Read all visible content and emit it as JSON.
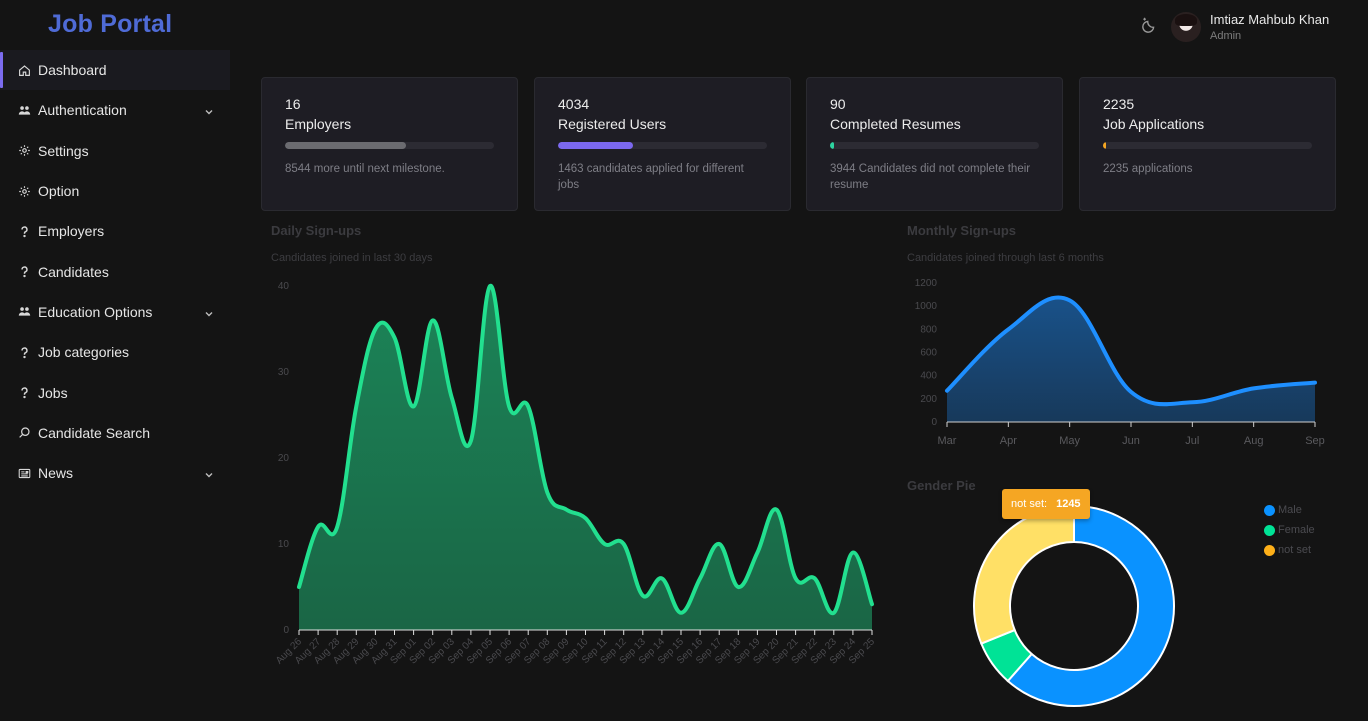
{
  "brand": "Job Portal",
  "header": {
    "user_name": "Imtiaz Mahbub Khan",
    "user_role": "Admin"
  },
  "sidebar": {
    "items": [
      {
        "label": "Dashboard",
        "icon": "home-icon",
        "active": true,
        "expandable": false
      },
      {
        "label": "Authentication",
        "icon": "users-icon",
        "active": false,
        "expandable": true
      },
      {
        "label": "Settings",
        "icon": "gear-icon",
        "active": false,
        "expandable": false
      },
      {
        "label": "Option",
        "icon": "gear-icon",
        "active": false,
        "expandable": false
      },
      {
        "label": "Employers",
        "icon": "question-icon",
        "active": false,
        "expandable": false
      },
      {
        "label": "Candidates",
        "icon": "question-icon",
        "active": false,
        "expandable": false
      },
      {
        "label": "Education Options",
        "icon": "users-icon",
        "active": false,
        "expandable": true
      },
      {
        "label": "Job categories",
        "icon": "question-icon",
        "active": false,
        "expandable": false
      },
      {
        "label": "Jobs",
        "icon": "question-icon",
        "active": false,
        "expandable": false
      },
      {
        "label": "Candidate Search",
        "icon": "search-icon",
        "active": false,
        "expandable": false
      },
      {
        "label": "News",
        "icon": "newspaper-icon",
        "active": false,
        "expandable": true
      }
    ]
  },
  "cards": [
    {
      "value": "16",
      "label": "Employers",
      "progress": 0.58,
      "color": "#6b6b70",
      "note": "8544 more until next milestone."
    },
    {
      "value": "4034",
      "label": "Registered Users",
      "progress": 0.36,
      "color": "#7b68ee",
      "note": "1463 candidates applied for different jobs"
    },
    {
      "value": "90",
      "label": "Completed Resumes",
      "progress": 0.02,
      "color": "#2dd4a0",
      "note": "3944 Candidates did not complete their resume"
    },
    {
      "value": "2235",
      "label": "Job Applications",
      "progress": 0.01,
      "color": "#f5a623",
      "note": "2235 applications"
    }
  ],
  "chart_data": [
    {
      "type": "area",
      "title": "Daily Sign-ups",
      "subtitle": "Candidates joined in last 30 days",
      "categories": [
        "Aug 26",
        "Aug 27",
        "Aug 28",
        "Aug 29",
        "Aug 30",
        "Aug 31",
        "Sep 01",
        "Sep 02",
        "Sep 03",
        "Sep 04",
        "Sep 05",
        "Sep 06",
        "Sep 07",
        "Sep 08",
        "Sep 09",
        "Sep 10",
        "Sep 11",
        "Sep 12",
        "Sep 13",
        "Sep 14",
        "Sep 15",
        "Sep 16",
        "Sep 17",
        "Sep 18",
        "Sep 19",
        "Sep 20",
        "Sep 21",
        "Sep 22",
        "Sep 23",
        "Sep 24",
        "Sep 25"
      ],
      "values": [
        5,
        12,
        12,
        26,
        35,
        34,
        26,
        36,
        27,
        22,
        40,
        26,
        26,
        16,
        14,
        13,
        10,
        10,
        4,
        6,
        2,
        6,
        10,
        5,
        9,
        14,
        6,
        6,
        2,
        9,
        3
      ],
      "ylim": [
        0,
        40
      ],
      "yticks": [
        0,
        10,
        20,
        30,
        40
      ],
      "color": "#22e08f"
    },
    {
      "type": "area",
      "title": "Monthly Sign-ups",
      "subtitle": "Candidates joined through last 6 months",
      "categories": [
        "Mar",
        "Apr",
        "May",
        "Jun",
        "Jul",
        "Aug",
        "Sep"
      ],
      "values": [
        270,
        800,
        1050,
        260,
        170,
        290,
        340
      ],
      "ylim": [
        0,
        1200
      ],
      "yticks": [
        0,
        200,
        400,
        600,
        800,
        1000,
        1200
      ],
      "color": "#1e8fff"
    },
    {
      "type": "pie",
      "title": "Gender Pie",
      "donut": true,
      "labels": [
        "Male",
        "Female",
        "not set"
      ],
      "values": [
        2460,
        295,
        1245
      ],
      "colors": [
        "#0a92ff",
        "#00e396",
        "#ffe066"
      ],
      "legend_colors": [
        "#0a92ff",
        "#00e396",
        "#feb019"
      ],
      "tooltip": {
        "label": "not set:",
        "value": "1245"
      }
    }
  ]
}
